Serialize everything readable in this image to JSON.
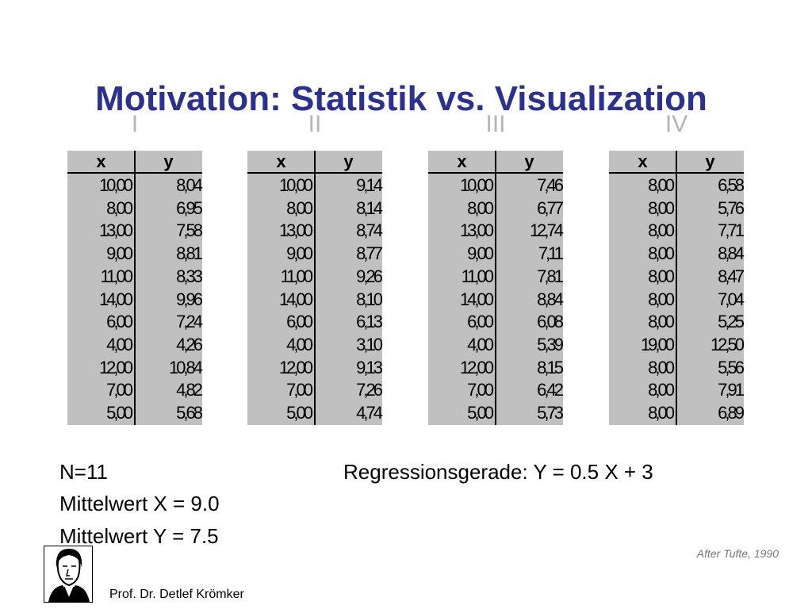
{
  "title": "Motivation: Statistik vs. Visualization",
  "tables": [
    {
      "label": "I",
      "headers": [
        "x",
        "y"
      ],
      "rows": [
        [
          "10,00",
          "8,04"
        ],
        [
          "8,00",
          "6,95"
        ],
        [
          "13,00",
          "7,58"
        ],
        [
          "9,00",
          "8,81"
        ],
        [
          "11,00",
          "8,33"
        ],
        [
          "14,00",
          "9,96"
        ],
        [
          "6,00",
          "7,24"
        ],
        [
          "4,00",
          "4,26"
        ],
        [
          "12,00",
          "10,84"
        ],
        [
          "7,00",
          "4,82"
        ],
        [
          "5,00",
          "5,68"
        ]
      ]
    },
    {
      "label": "II",
      "headers": [
        "x",
        "y"
      ],
      "rows": [
        [
          "10,00",
          "9,14"
        ],
        [
          "8,00",
          "8,14"
        ],
        [
          "13,00",
          "8,74"
        ],
        [
          "9,00",
          "8,77"
        ],
        [
          "11,00",
          "9,26"
        ],
        [
          "14,00",
          "8,10"
        ],
        [
          "6,00",
          "6,13"
        ],
        [
          "4,00",
          "3,10"
        ],
        [
          "12,00",
          "9,13"
        ],
        [
          "7,00",
          "7,26"
        ],
        [
          "5,00",
          "4,74"
        ]
      ]
    },
    {
      "label": "III",
      "headers": [
        "x",
        "y"
      ],
      "rows": [
        [
          "10,00",
          "7,46"
        ],
        [
          "8,00",
          "6,77"
        ],
        [
          "13,00",
          "12,74"
        ],
        [
          "9,00",
          "7,11"
        ],
        [
          "11,00",
          "7,81"
        ],
        [
          "14,00",
          "8,84"
        ],
        [
          "6,00",
          "6,08"
        ],
        [
          "4,00",
          "5,39"
        ],
        [
          "12,00",
          "8,15"
        ],
        [
          "7,00",
          "6,42"
        ],
        [
          "5,00",
          "5,73"
        ]
      ]
    },
    {
      "label": "IV",
      "headers": [
        "x",
        "y"
      ],
      "rows": [
        [
          "8,00",
          "6,58"
        ],
        [
          "8,00",
          "5,76"
        ],
        [
          "8,00",
          "7,71"
        ],
        [
          "8,00",
          "8,84"
        ],
        [
          "8,00",
          "8,47"
        ],
        [
          "8,00",
          "7,04"
        ],
        [
          "8,00",
          "5,25"
        ],
        [
          "19,00",
          "12,50"
        ],
        [
          "8,00",
          "5,56"
        ],
        [
          "8,00",
          "7,91"
        ],
        [
          "8,00",
          "6,89"
        ]
      ]
    }
  ],
  "stats": [
    "N=11",
    "Mittelwert X = 9.0",
    "Mittelwert Y = 7.5"
  ],
  "regression": "Regressionsgerade: Y = 0.5 X + 3",
  "source": "After Tufte, 1990",
  "footer": "Prof. Dr. Detlef Krömker"
}
